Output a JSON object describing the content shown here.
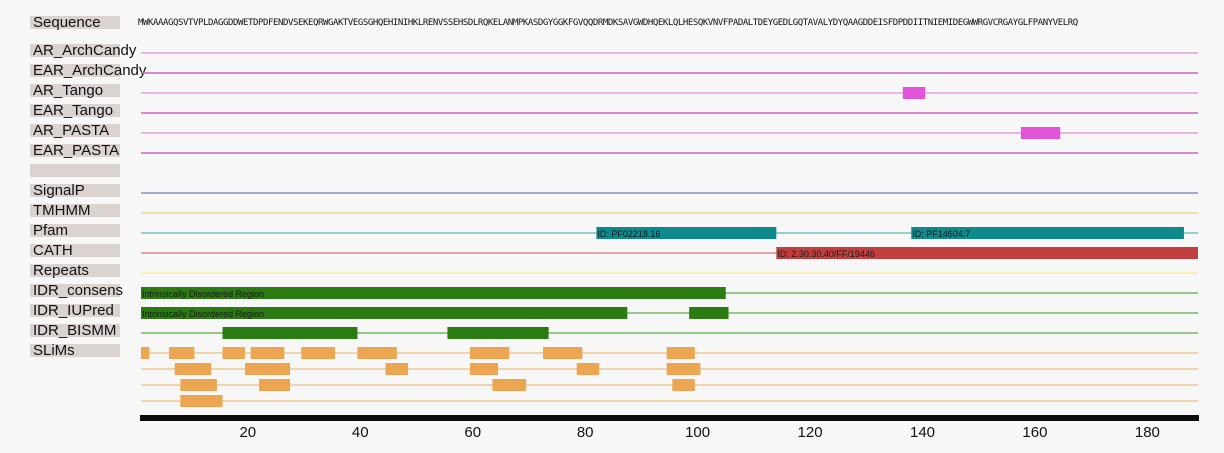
{
  "sequence": {
    "label": "Sequence",
    "residues": "MWKAAAGQSVTVPLDAGGDDWETDPDFENDVSEKEQRWGAKTVEGSGHQEHINIHKLRENVSSEHSDLRQKELANMPKASDGYGGKFGVQQDRMDKSAVGWDHQEKLQLHESQKVNVFPADALTDEYGEDLGQTAVALYDYQAAGDDEISFDPDDIITNIEMIDEGWWRGVCRGAYGLFPANYVELRQ"
  },
  "tracks": [
    {
      "id": "ar_archcandy",
      "label": "AR_ArchCandy",
      "line_color": "#e79ce3",
      "features": []
    },
    {
      "id": "ear_archcandy",
      "label": "EAR_ArchCandy",
      "line_color": "#c667c5",
      "features": []
    },
    {
      "id": "ar_tango",
      "label": "AR_Tango",
      "line_color": "#e79ce3",
      "features": [
        {
          "start": 136.5,
          "end": 140.5,
          "color": "#e255d9",
          "text": ""
        }
      ]
    },
    {
      "id": "ear_tango",
      "label": "EAR_Tango",
      "line_color": "#c667c5",
      "features": []
    },
    {
      "id": "ar_pasta",
      "label": "AR_PASTA",
      "line_color": "#e79ce3",
      "features": [
        {
          "start": 157.5,
          "end": 164.5,
          "color": "#e255d9",
          "text": ""
        }
      ]
    },
    {
      "id": "ear_pasta",
      "label": "EAR_PASTA",
      "line_color": "#c667c5",
      "features": []
    },
    {
      "id": "blank",
      "label": "",
      "line_color": "",
      "features": []
    },
    {
      "id": "signalp",
      "label": "SignalP",
      "line_color": "#8691c0",
      "features": []
    },
    {
      "id": "tmhmm",
      "label": "TMHMM",
      "line_color": "#f1d98f",
      "features": []
    },
    {
      "id": "pfam",
      "label": "Pfam",
      "line_color": "#74c4c6",
      "features": [
        {
          "start": 82,
          "end": 114,
          "color": "#0e8a8c",
          "text": "ID: PF02218.16"
        },
        {
          "start": 138,
          "end": 186.5,
          "color": "#0e8a8c",
          "text": "ID: PF14604.7"
        }
      ]
    },
    {
      "id": "cath",
      "label": "CATH",
      "line_color": "#d88a8a",
      "features": [
        {
          "start": 114,
          "end": 189,
          "color": "#c13f3f",
          "text": "ID: 2.30.30.40/FF/19446"
        }
      ]
    },
    {
      "id": "repeats",
      "label": "Repeats",
      "line_color": "#f6ee9f",
      "features": []
    },
    {
      "id": "idr_consens",
      "label": "IDR_consens",
      "line_color": "#76b866",
      "features": [
        {
          "start": 1,
          "end": 105,
          "color": "#2a7b11",
          "text": "Intrinsically Disordered Region"
        }
      ]
    },
    {
      "id": "idr_iupred",
      "label": "IDR_IUPred",
      "line_color": "#76b866",
      "features": [
        {
          "start": 1,
          "end": 87.5,
          "color": "#2a7b11",
          "text": "Intrinsically Disordered Region"
        },
        {
          "start": 98.5,
          "end": 105.5,
          "color": "#2a7b11",
          "text": ""
        }
      ]
    },
    {
      "id": "idr_bismm",
      "label": "IDR_BISMM",
      "line_color": "#76b866",
      "features": [
        {
          "start": 15.5,
          "end": 39.5,
          "color": "#2a7b11",
          "text": ""
        },
        {
          "start": 55.5,
          "end": 73.5,
          "color": "#2a7b11",
          "text": ""
        }
      ]
    }
  ],
  "slims": {
    "label": "SLiMs",
    "line_color": "#efc98f",
    "bar_color": "#eca651",
    "rows": [
      [
        [
          1,
          2.5
        ],
        [
          6,
          10.5
        ],
        [
          15.5,
          19.5
        ],
        [
          20.5,
          26.5
        ],
        [
          29.5,
          35.5
        ],
        [
          39.5,
          46.5
        ],
        [
          59.5,
          66.5
        ],
        [
          72.5,
          79.5
        ],
        [
          94.5,
          99.5
        ]
      ],
      [
        [
          7,
          13.5
        ],
        [
          19.5,
          27.5
        ],
        [
          44.5,
          48.5
        ],
        [
          59.5,
          64.5
        ],
        [
          78.5,
          82.5
        ],
        [
          94.5,
          100.5
        ]
      ],
      [
        [
          8,
          14.5
        ],
        [
          22,
          27.5
        ],
        [
          63.5,
          69.5
        ],
        [
          95.5,
          99.5
        ]
      ],
      [
        [
          8,
          15.5
        ]
      ]
    ]
  },
  "axis": {
    "min": 1,
    "max": 189,
    "ticks": [
      20,
      40,
      60,
      80,
      100,
      120,
      140,
      160,
      180
    ],
    "bar_color": "#0d0d0d"
  }
}
